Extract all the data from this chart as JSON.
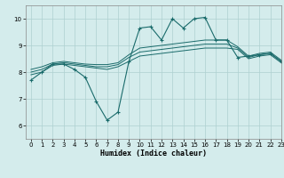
{
  "xlabel": "Humidex (Indice chaleur)",
  "ylabel": "",
  "background_color": "#d4ecec",
  "grid_color": "#aed0d0",
  "line_color": "#1a6b6b",
  "xlim": [
    -0.5,
    23
  ],
  "ylim": [
    5.5,
    10.5
  ],
  "yticks": [
    6,
    7,
    8,
    9,
    10
  ],
  "xticks": [
    0,
    1,
    2,
    3,
    4,
    5,
    6,
    7,
    8,
    9,
    10,
    11,
    12,
    13,
    14,
    15,
    16,
    17,
    18,
    19,
    20,
    21,
    22,
    23
  ],
  "series": {
    "line1_x": [
      0,
      1,
      2,
      3,
      4,
      5,
      6,
      7,
      8,
      9,
      10,
      11,
      12,
      13,
      14,
      15,
      16,
      17,
      18,
      19,
      20,
      21,
      22,
      23
    ],
    "line1_y": [
      7.7,
      8.0,
      8.3,
      8.3,
      8.1,
      7.8,
      6.9,
      6.2,
      6.5,
      8.4,
      9.65,
      9.7,
      9.2,
      10.0,
      9.65,
      10.0,
      10.05,
      9.2,
      9.2,
      8.55,
      8.6,
      8.65,
      8.7,
      8.4
    ],
    "line2_x": [
      0,
      1,
      2,
      3,
      4,
      5,
      6,
      7,
      8,
      9,
      10,
      11,
      12,
      13,
      14,
      15,
      16,
      17,
      18,
      19,
      20,
      21,
      22,
      23
    ],
    "line2_y": [
      7.9,
      8.0,
      8.25,
      8.3,
      8.25,
      8.2,
      8.15,
      8.1,
      8.2,
      8.4,
      8.6,
      8.65,
      8.7,
      8.75,
      8.8,
      8.85,
      8.9,
      8.9,
      8.9,
      8.85,
      8.5,
      8.6,
      8.65,
      8.35
    ],
    "line3_x": [
      0,
      1,
      2,
      3,
      4,
      5,
      6,
      7,
      8,
      9,
      10,
      11,
      12,
      13,
      14,
      15,
      16,
      17,
      18,
      19,
      20,
      21,
      22,
      23
    ],
    "line3_y": [
      8.0,
      8.1,
      8.3,
      8.35,
      8.3,
      8.25,
      8.2,
      8.2,
      8.28,
      8.55,
      8.75,
      8.8,
      8.85,
      8.9,
      8.95,
      9.0,
      9.05,
      9.05,
      9.05,
      8.9,
      8.55,
      8.65,
      8.7,
      8.4
    ],
    "line4_x": [
      0,
      1,
      2,
      3,
      4,
      5,
      6,
      7,
      8,
      9,
      10,
      11,
      12,
      13,
      14,
      15,
      16,
      17,
      18,
      19,
      20,
      21,
      22,
      23
    ],
    "line4_y": [
      8.1,
      8.2,
      8.35,
      8.4,
      8.35,
      8.3,
      8.28,
      8.28,
      8.35,
      8.65,
      8.9,
      8.95,
      9.0,
      9.05,
      9.1,
      9.15,
      9.2,
      9.2,
      9.2,
      8.95,
      8.6,
      8.7,
      8.75,
      8.45
    ]
  }
}
